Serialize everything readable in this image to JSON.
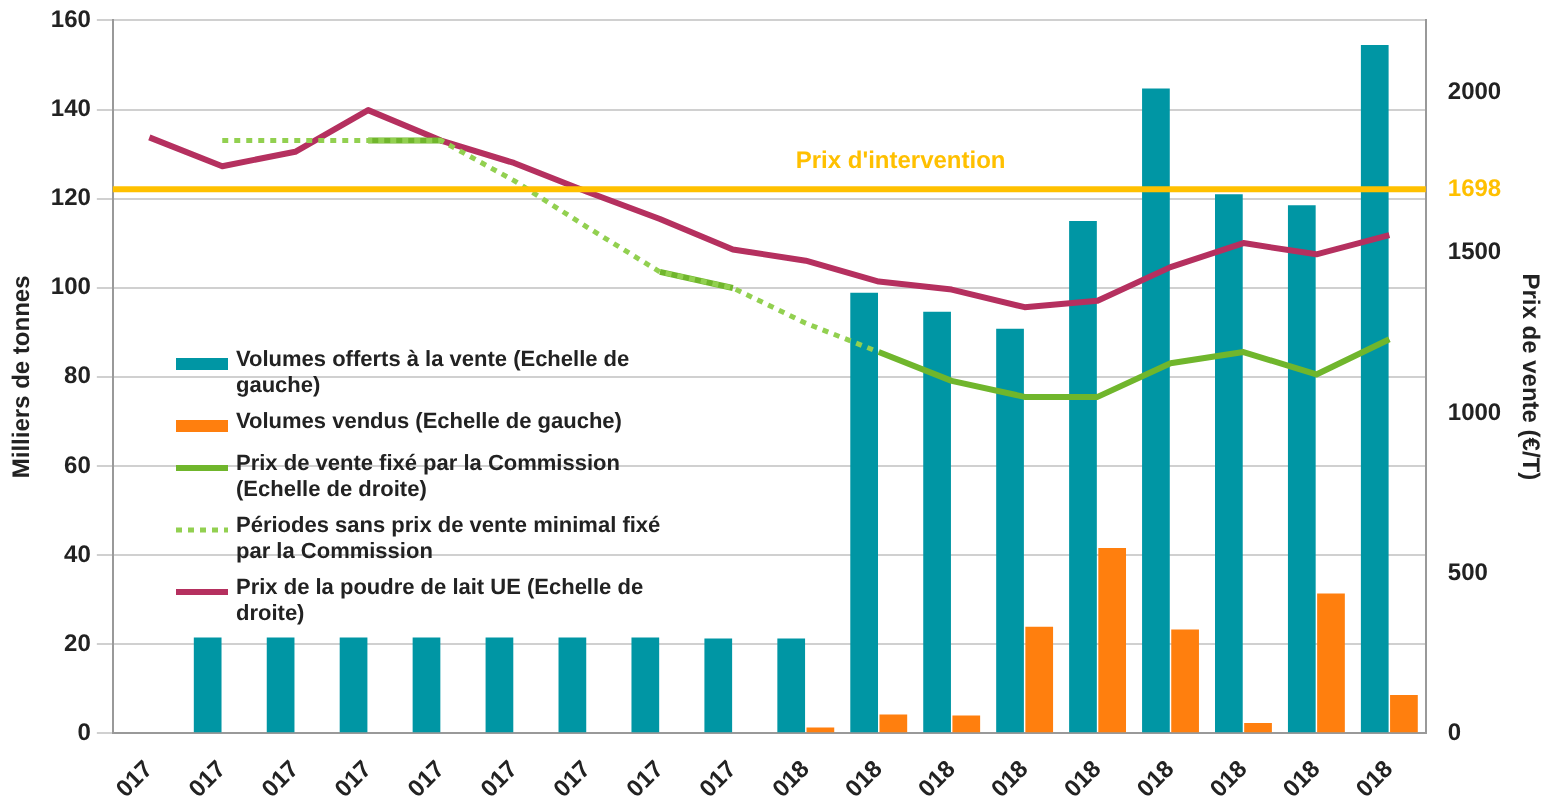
{
  "chart_data": {
    "type": "bar",
    "ylabel": "Milliers de tonnes",
    "y2label": "Prix de vente (€/T)",
    "categories": [
      "017",
      "017",
      "017",
      "017",
      "017",
      "017",
      "017",
      "017",
      "017",
      "018",
      "018",
      "018",
      "018",
      "018",
      "018",
      "018",
      "018",
      "018"
    ],
    "series": [
      {
        "name": "Volumes offerts à la vente (Echelle de gauche)",
        "color": "#0096a4",
        "values": [
          null,
          21.5,
          21.5,
          21.5,
          21.5,
          21.5,
          21.5,
          21.5,
          21.3,
          21.3,
          98.9,
          94.6,
          90.8,
          115,
          144.7,
          121,
          118.5,
          154.5
        ]
      },
      {
        "name": "Volumes vendus (Echelle de gauche)",
        "color": "#ff7f0e",
        "values": [
          0,
          0,
          0,
          null,
          0,
          0,
          null,
          null,
          0,
          1.3,
          4.2,
          4,
          23.9,
          41.6,
          23.3,
          2.3,
          31.4,
          8.6
        ]
      },
      {
        "name": "Prix de vente fixé par la Commission (Echelle de droite)",
        "type": "line",
        "axis": "y2",
        "line_style": "solid",
        "color": "#70b62c",
        "values": [
          null,
          null,
          null,
          1850,
          1850,
          null,
          null,
          1440,
          1390,
          null,
          1190,
          1100,
          1050,
          1050,
          1155,
          1190,
          1120,
          1230
        ]
      },
      {
        "name": "Périodes sans prix de vente minimal fixé par la Commission",
        "type": "line",
        "axis": "y2",
        "line_style": "dotted",
        "color": "#92d050",
        "values": [
          null,
          1850,
          1850,
          1850,
          1850,
          1725,
          1580,
          1440,
          1390,
          1280,
          1190,
          null,
          null,
          null,
          null,
          null,
          null,
          null
        ]
      },
      {
        "name": "Prix de la poudre de lait UE (Echelle de droite)",
        "type": "line",
        "axis": "y2",
        "line_style": "solid",
        "color": "#b5305f",
        "values": [
          1860,
          1770,
          1815,
          1945,
          1850,
          1780,
          1690,
          1605,
          1510,
          1475,
          1410,
          1385,
          1330,
          1350,
          1455,
          1530,
          1495,
          1555
        ]
      }
    ],
    "ylim": [
      0,
      160
    ],
    "yticks": [
      0,
      20,
      40,
      60,
      80,
      100,
      120,
      140,
      160
    ],
    "y2lim": [
      0,
      2225
    ],
    "y2ticks": [
      0,
      500,
      1000,
      1500,
      {
        "value": 1698,
        "label": "1698"
      },
      2000
    ],
    "ref_lines": [
      {
        "axis": "y2",
        "value": 1698,
        "label": "Prix d'intervention",
        "color": "#ffc000"
      }
    ],
    "grid": "y",
    "legend": "left",
    "marker": "none"
  }
}
